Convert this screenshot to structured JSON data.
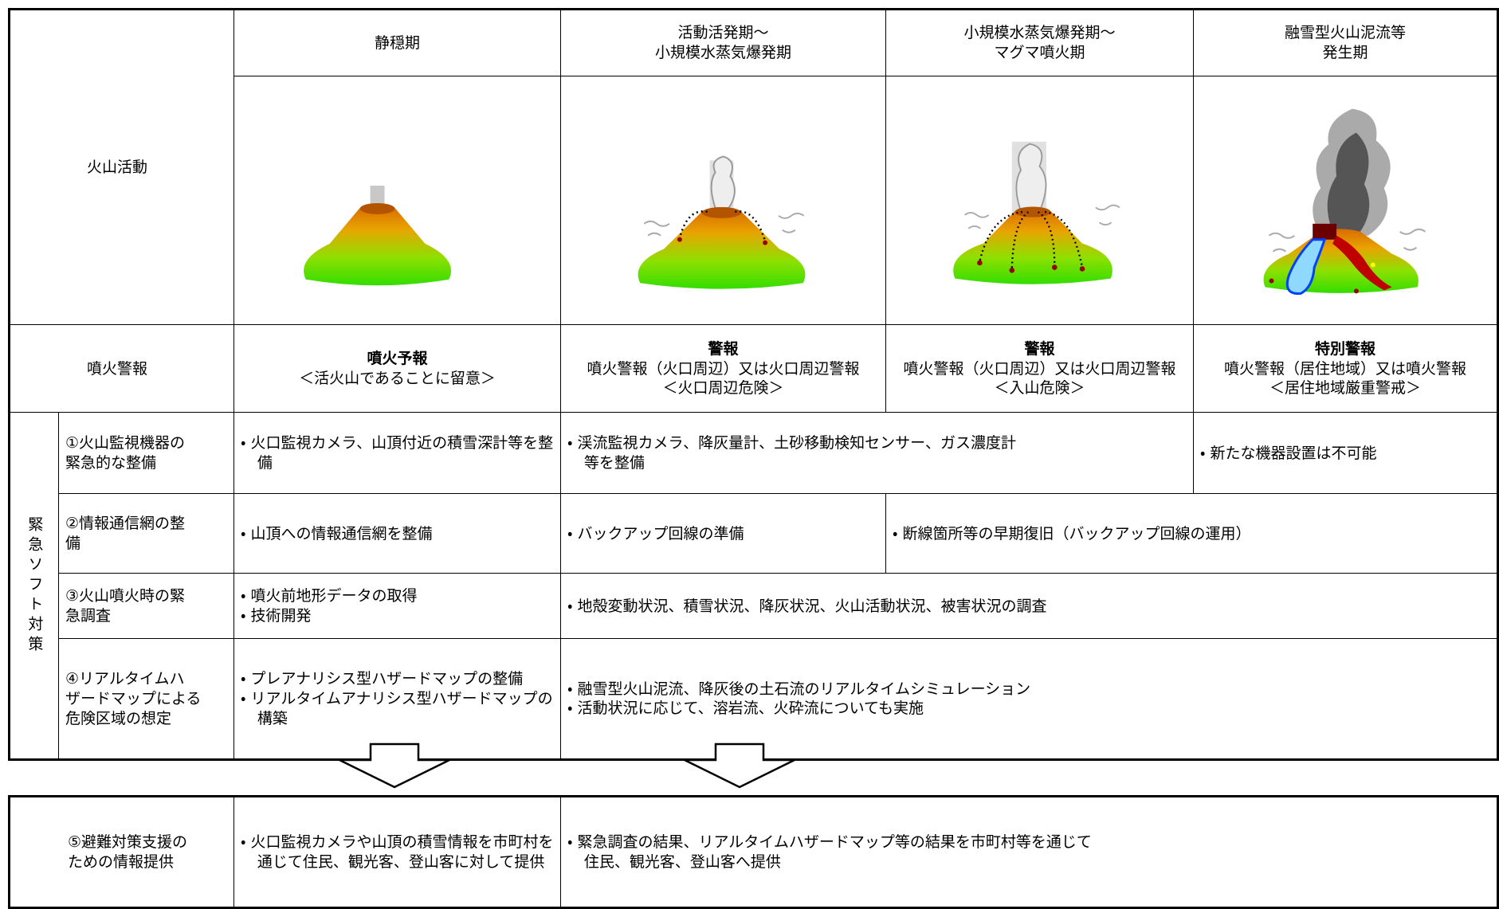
{
  "volcanic_activity": {
    "label": "火山活動",
    "phases": [
      "静穏期",
      "活動活発期～\n小規模水蒸気爆発期",
      "小規模水蒸気爆発期～\nマグマ噴火期",
      "融雪型火山泥流等\n発生期"
    ]
  },
  "eruption_warning": {
    "label": "噴火警報",
    "levels": [
      {
        "title": "噴火予報",
        "note": "＜活火山であることに留意＞"
      },
      {
        "title": "警報",
        "detail": "噴火警報（火口周辺）又は火口周辺警報",
        "note": "＜火口周辺危険＞"
      },
      {
        "title": "警報",
        "detail": "噴火警報（火口周辺）又は火口周辺警報",
        "note": "＜入山危険＞"
      },
      {
        "title": "特別警報",
        "detail": "噴火警報（居住地域）又は噴火警報",
        "note": "＜居住地域厳重警戒＞"
      }
    ]
  },
  "emergency_measures": {
    "label": "緊急ソフト対策",
    "rows": [
      {
        "label": "①火山監視機器の\n緊急的な整備",
        "cells": [
          [
            "・ 火口監視カメラ、山頂付近の積雪深計等を整備"
          ],
          [
            "・ 渓流監視カメラ、降灰量計、土砂移動検知センサー、ガス濃度計\n等を整備"
          ],
          [
            "・ 新たな機器設置は不可能"
          ]
        ]
      },
      {
        "label": "②情報通信網の整\n備",
        "cells": [
          [
            "・ 山頂への情報通信網を整備"
          ],
          [
            "・ バックアップ回線の準備"
          ],
          [
            "・ 断線箇所等の早期復旧（バックアップ回線の運用）"
          ]
        ]
      },
      {
        "label": "③火山噴火時の緊\n急調査",
        "cells": [
          [
            "・ 噴火前地形データの取得",
            "・ 技術開発"
          ],
          [
            "・ 地殻変動状況、積雪状況、降灰状況、火山活動状況、被害状況の調査"
          ]
        ]
      },
      {
        "label": "④リアルタイムハ\nザードマップによる\n危険区域の想定",
        "cells": [
          [
            "・ プレアナリシス型ハザードマップの整備",
            "・ リアルタイムアナリシス型ハザードマップの構築"
          ],
          [
            "・ 融雪型火山泥流、降灰後の土石流のリアルタイムシミュレーション",
            "・ 活動状況に応じて、溶岩流、火砕流についても実施"
          ]
        ]
      }
    ]
  },
  "evacuation_support": {
    "label": "⑤避難対策支援の\nための情報提供",
    "cells": [
      [
        "・ 火口監視カメラや山頂の積雪情報を市町村を通じて住民、観光客、登山客に対して提供"
      ],
      [
        "・ 緊急調査の結果、リアルタイムハザードマップ等の結果を市町村等を通じて\n住民、観光客、登山客へ提供"
      ]
    ]
  }
}
